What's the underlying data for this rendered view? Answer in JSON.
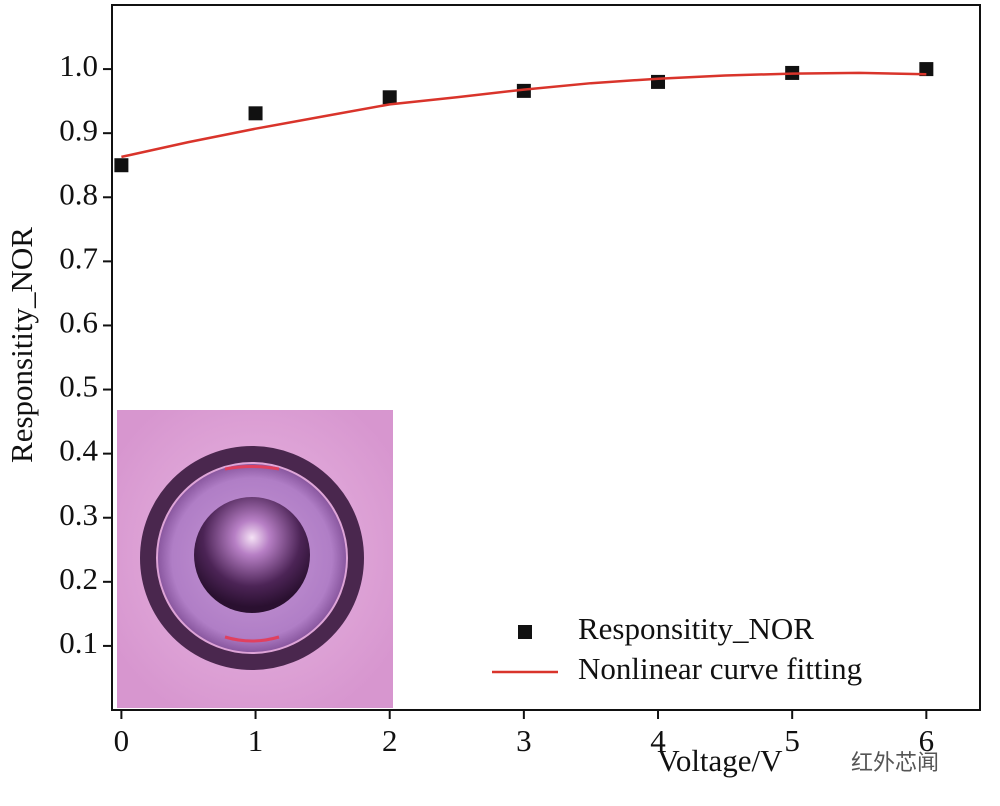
{
  "chart_data": {
    "type": "scatter",
    "x_label": "Voltage/V",
    "y_label": "Responsitity_NOR",
    "xlim": [
      -0.07,
      6.4
    ],
    "ylim": [
      0,
      1.1
    ],
    "xticks": [
      0,
      1,
      2,
      3,
      4,
      5,
      6
    ],
    "yticks": [
      0.1,
      0.2,
      0.3,
      0.4,
      0.5,
      0.6,
      0.7,
      0.8,
      0.9,
      {
        "value": 1,
        "label": "1.0"
      }
    ],
    "series": [
      {
        "name": "Responsitity_NOR",
        "color": "#111111",
        "x": [
          0,
          1,
          2,
          3,
          4,
          5,
          6
        ],
        "values": [
          0.85,
          0.931,
          0.956,
          0.966,
          0.98,
          0.994,
          1.0
        ]
      },
      {
        "name": "Nonlinear curve fitting",
        "color": "#d9342b",
        "x": [
          0,
          0.5,
          1,
          1.5,
          2,
          2.5,
          3,
          3.5,
          4,
          4.5,
          5,
          5.5,
          6
        ],
        "values": [
          0.863,
          0.886,
          0.907,
          0.926,
          0.945,
          0.956,
          0.968,
          0.978,
          0.985,
          0.99,
          0.993,
          0.994,
          0.992
        ]
      }
    ],
    "legend": "lower right",
    "watermark": "红外芯闻"
  }
}
